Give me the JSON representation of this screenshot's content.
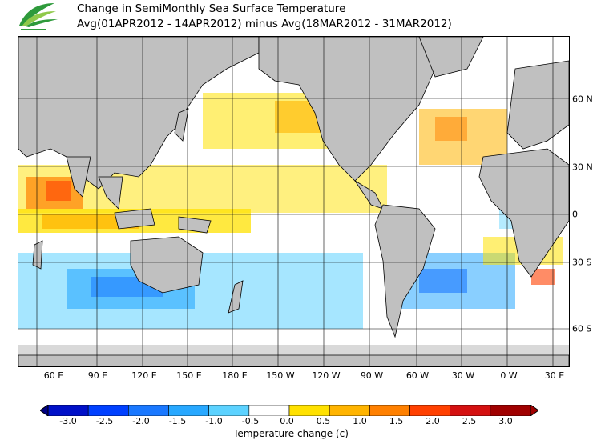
{
  "title_line1": "Change in SemiMonthly Sea Surface Temperature",
  "title_line2": "Avg(01APR2012 - 14APR2012) minus Avg(18MAR2012 - 31MAR2012)",
  "logo_icon": "leaf-logo-icon",
  "lon_ticks": [
    "60 E",
    "90 E",
    "120 E",
    "150 E",
    "180 E",
    "150 W",
    "120 W",
    "90 W",
    "60 W",
    "30 W",
    "0 W",
    "30 E"
  ],
  "lat_ticks": [
    "60 N",
    "30 N",
    "0",
    "30 S",
    "60 S"
  ],
  "colorbar": {
    "title": "Temperature change  (c)",
    "labels": [
      "-3.0",
      "-2.5",
      "-2.0",
      "-1.5",
      "-1.0",
      "-0.5",
      "0.0",
      "0.5",
      "1.0",
      "1.5",
      "2.0",
      "2.5",
      "3.0"
    ],
    "colors": [
      "#00007f",
      "#0010c8",
      "#0040ff",
      "#1a78ff",
      "#28a8ff",
      "#5cd2ff",
      "#ffffff",
      "#ffe100",
      "#ffb400",
      "#ff8000",
      "#ff4000",
      "#d41010",
      "#a00000"
    ]
  },
  "colors": {
    "land": "#c0c0c0",
    "border": "#000000",
    "ice": "#d9d9d9"
  }
}
